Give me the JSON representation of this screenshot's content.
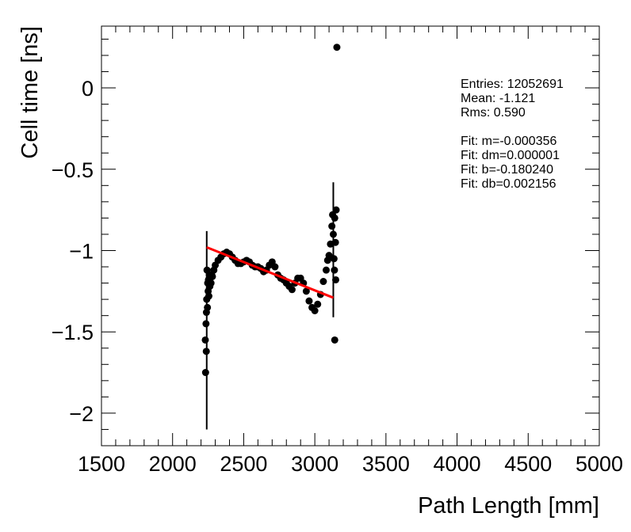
{
  "chart_data": {
    "type": "scatter",
    "xlabel": "Path Length [mm]",
    "ylabel": "Cell time [ns]",
    "xlim": [
      1500,
      5000
    ],
    "ylim": [
      -2.2,
      0.38
    ],
    "x_ticks": [
      1500,
      2000,
      2500,
      3000,
      3500,
      4000,
      4500,
      5000
    ],
    "y_ticks": [
      0,
      -0.5,
      -1,
      -1.5,
      -2
    ],
    "y_tick_labels": [
      "0",
      "−0.5",
      "−1",
      "−1.5",
      "−2"
    ],
    "marker_color": "#000000",
    "fit_color": "#ff0000",
    "stats": {
      "entries": "Entries: 12052691",
      "mean": "Mean: -1.121",
      "rms": "Rms: 0.590",
      "fit_m": "Fit: m=-0.000356",
      "fit_dm": "Fit: dm=0.000001",
      "fit_b": "Fit: b=-0.180240",
      "fit_db": "Fit: db=0.002156"
    },
    "fit_line": {
      "x": [
        2240,
        3130
      ],
      "y": [
        -0.98,
        -1.29
      ]
    },
    "error_bars": [
      {
        "x": 2240,
        "y": -1.49,
        "ylo": -2.1,
        "yhi": -0.88
      },
      {
        "x": 3130,
        "y": -1.0,
        "ylo": -1.41,
        "yhi": -0.58
      }
    ],
    "series": [
      {
        "values": [
          [
            2230,
            -1.55
          ],
          [
            2232,
            -1.75
          ],
          [
            2235,
            -1.45
          ],
          [
            2237,
            -1.62
          ],
          [
            2238,
            -1.38
          ],
          [
            2240,
            -1.3
          ],
          [
            2242,
            -1.12
          ],
          [
            2245,
            -1.35
          ],
          [
            2247,
            -1.2
          ],
          [
            2250,
            -1.25
          ],
          [
            2252,
            -1.18
          ],
          [
            2255,
            -1.28
          ],
          [
            2258,
            -1.15
          ],
          [
            2262,
            -1.22
          ],
          [
            2265,
            -1.17
          ],
          [
            2270,
            -1.2
          ],
          [
            2275,
            -1.15
          ],
          [
            2280,
            -1.16
          ],
          [
            2290,
            -1.12
          ],
          [
            2300,
            -1.09
          ],
          [
            2320,
            -1.06
          ],
          [
            2340,
            -1.04
          ],
          [
            2360,
            -1.02
          ],
          [
            2380,
            -1.01
          ],
          [
            2400,
            -1.02
          ],
          [
            2420,
            -1.04
          ],
          [
            2440,
            -1.06
          ],
          [
            2460,
            -1.08
          ],
          [
            2480,
            -1.08
          ],
          [
            2500,
            -1.07
          ],
          [
            2520,
            -1.06
          ],
          [
            2540,
            -1.07
          ],
          [
            2560,
            -1.09
          ],
          [
            2580,
            -1.1
          ],
          [
            2600,
            -1.1
          ],
          [
            2620,
            -1.11
          ],
          [
            2640,
            -1.13
          ],
          [
            2660,
            -1.12
          ],
          [
            2680,
            -1.09
          ],
          [
            2700,
            -1.07
          ],
          [
            2720,
            -1.1
          ],
          [
            2740,
            -1.15
          ],
          [
            2760,
            -1.17
          ],
          [
            2780,
            -1.18
          ],
          [
            2800,
            -1.2
          ],
          [
            2820,
            -1.22
          ],
          [
            2840,
            -1.24
          ],
          [
            2860,
            -1.2
          ],
          [
            2880,
            -1.17
          ],
          [
            2900,
            -1.17
          ],
          [
            2920,
            -1.2
          ],
          [
            2940,
            -1.25
          ],
          [
            2960,
            -1.31
          ],
          [
            2980,
            -1.35
          ],
          [
            3000,
            -1.37
          ],
          [
            3020,
            -1.33
          ],
          [
            3040,
            -1.27
          ],
          [
            3060,
            -1.19
          ],
          [
            3080,
            -1.12
          ],
          [
            3090,
            -1.06
          ],
          [
            3100,
            -1.03
          ],
          [
            3110,
            -0.96
          ],
          [
            3120,
            -0.85
          ],
          [
            3125,
            -0.78
          ],
          [
            3130,
            -0.9
          ],
          [
            3135,
            -1.05
          ],
          [
            3138,
            -1.12
          ],
          [
            3140,
            -0.8
          ],
          [
            3145,
            -0.95
          ],
          [
            3147,
            -1.18
          ],
          [
            3150,
            -0.75
          ],
          [
            3155,
            0.25
          ],
          [
            3140,
            -1.55
          ]
        ]
      }
    ]
  }
}
